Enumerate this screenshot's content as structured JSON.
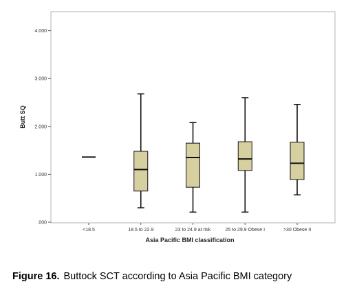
{
  "chart_data": {
    "type": "box",
    "xlabel": "Asia Pacific BMI classification",
    "ylabel": "Butt SQ",
    "ylim": [
      0,
      4.2
    ],
    "yticks": [
      {
        "value": 0,
        "label": ".000"
      },
      {
        "value": 1,
        "label": "1.000"
      },
      {
        "value": 2,
        "label": "2.000"
      },
      {
        "value": 3,
        "label": "3.000"
      },
      {
        "value": 4,
        "label": "4.000"
      }
    ],
    "grid": false,
    "box_color": "#d6cfa0",
    "categories": [
      "<18.5",
      "18.5 to 22.9",
      "23 to 24.9 at risk",
      "25 to 29.9 Obese I",
      ">30 Obese II"
    ],
    "boxes": [
      {
        "category": "<18.5",
        "min": 1.36,
        "q1": 1.36,
        "median": 1.36,
        "q3": 1.36,
        "max": 1.36
      },
      {
        "category": "18.5 to 22.9",
        "min": 0.3,
        "q1": 0.65,
        "median": 1.1,
        "q3": 1.48,
        "max": 2.68
      },
      {
        "category": "23 to 24.9 at risk",
        "min": 0.21,
        "q1": 0.73,
        "median": 1.35,
        "q3": 1.65,
        "max": 2.08
      },
      {
        "category": "25 to 29.9 Obese I",
        "min": 0.21,
        "q1": 1.08,
        "median": 1.32,
        "q3": 1.68,
        "max": 2.6
      },
      {
        "category": ">30 Obese II",
        "min": 0.57,
        "q1": 0.89,
        "median": 1.23,
        "q3": 1.67,
        "max": 2.46
      }
    ]
  },
  "caption": {
    "label": "Figure 16.",
    "text": "Buttock SCT according to Asia Pacific BMI category"
  }
}
